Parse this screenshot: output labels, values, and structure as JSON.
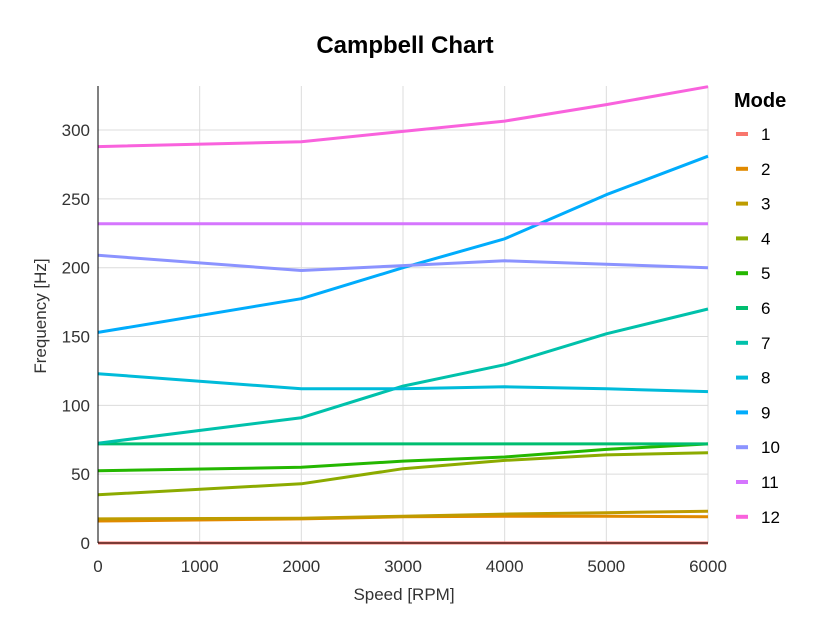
{
  "chart_data": {
    "type": "line",
    "title": "Campbell Chart",
    "xlabel": "Speed [RPM]",
    "ylabel": "Frequency [Hz]",
    "xlim": [
      0,
      6000
    ],
    "ylim": [
      0,
      332
    ],
    "xticks": [
      0,
      1000,
      2000,
      3000,
      4000,
      5000,
      6000
    ],
    "yticks": [
      0,
      50,
      100,
      150,
      200,
      250,
      300
    ],
    "grid": true,
    "legend": {
      "title": "Mode",
      "placement": "right"
    },
    "x": [
      0,
      2000,
      3000,
      4000,
      5000,
      6000
    ],
    "series": [
      {
        "name": "1",
        "color": "#F8766D",
        "values": [
          0,
          0,
          0,
          0,
          0,
          0
        ]
      },
      {
        "name": "2",
        "color": "#E18A00",
        "values": [
          16,
          17.5,
          19,
          19.5,
          19.5,
          19
        ]
      },
      {
        "name": "3",
        "color": "#BE9C00",
        "values": [
          17.5,
          18,
          19.5,
          21,
          22,
          23
        ]
      },
      {
        "name": "4",
        "color": "#8CAB00",
        "values": [
          35,
          43,
          54,
          60,
          64,
          65.5
        ]
      },
      {
        "name": "5",
        "color": "#24B700",
        "values": [
          52.5,
          55,
          59.5,
          62.5,
          68,
          72
        ]
      },
      {
        "name": "6",
        "color": "#00BE70",
        "values": [
          72,
          72,
          72,
          72,
          72,
          72
        ]
      },
      {
        "name": "7",
        "color": "#00C1AB",
        "values": [
          72.5,
          91,
          114,
          129.5,
          152,
          170
        ]
      },
      {
        "name": "8",
        "color": "#00BBDA",
        "values": [
          123,
          112,
          112,
          113.5,
          112,
          110
        ]
      },
      {
        "name": "9",
        "color": "#00ACFC",
        "values": [
          153,
          177.5,
          200,
          221,
          253,
          281
        ]
      },
      {
        "name": "10",
        "color": "#8B93FF",
        "values": [
          209,
          198,
          201.5,
          205,
          202.5,
          200
        ]
      },
      {
        "name": "11",
        "color": "#D575FE",
        "values": [
          232,
          232,
          232,
          232,
          232,
          232
        ]
      },
      {
        "name": "12",
        "color": "#F962DD",
        "values": [
          288,
          291.5,
          299,
          306.5,
          318.5,
          331.5
        ]
      }
    ]
  }
}
